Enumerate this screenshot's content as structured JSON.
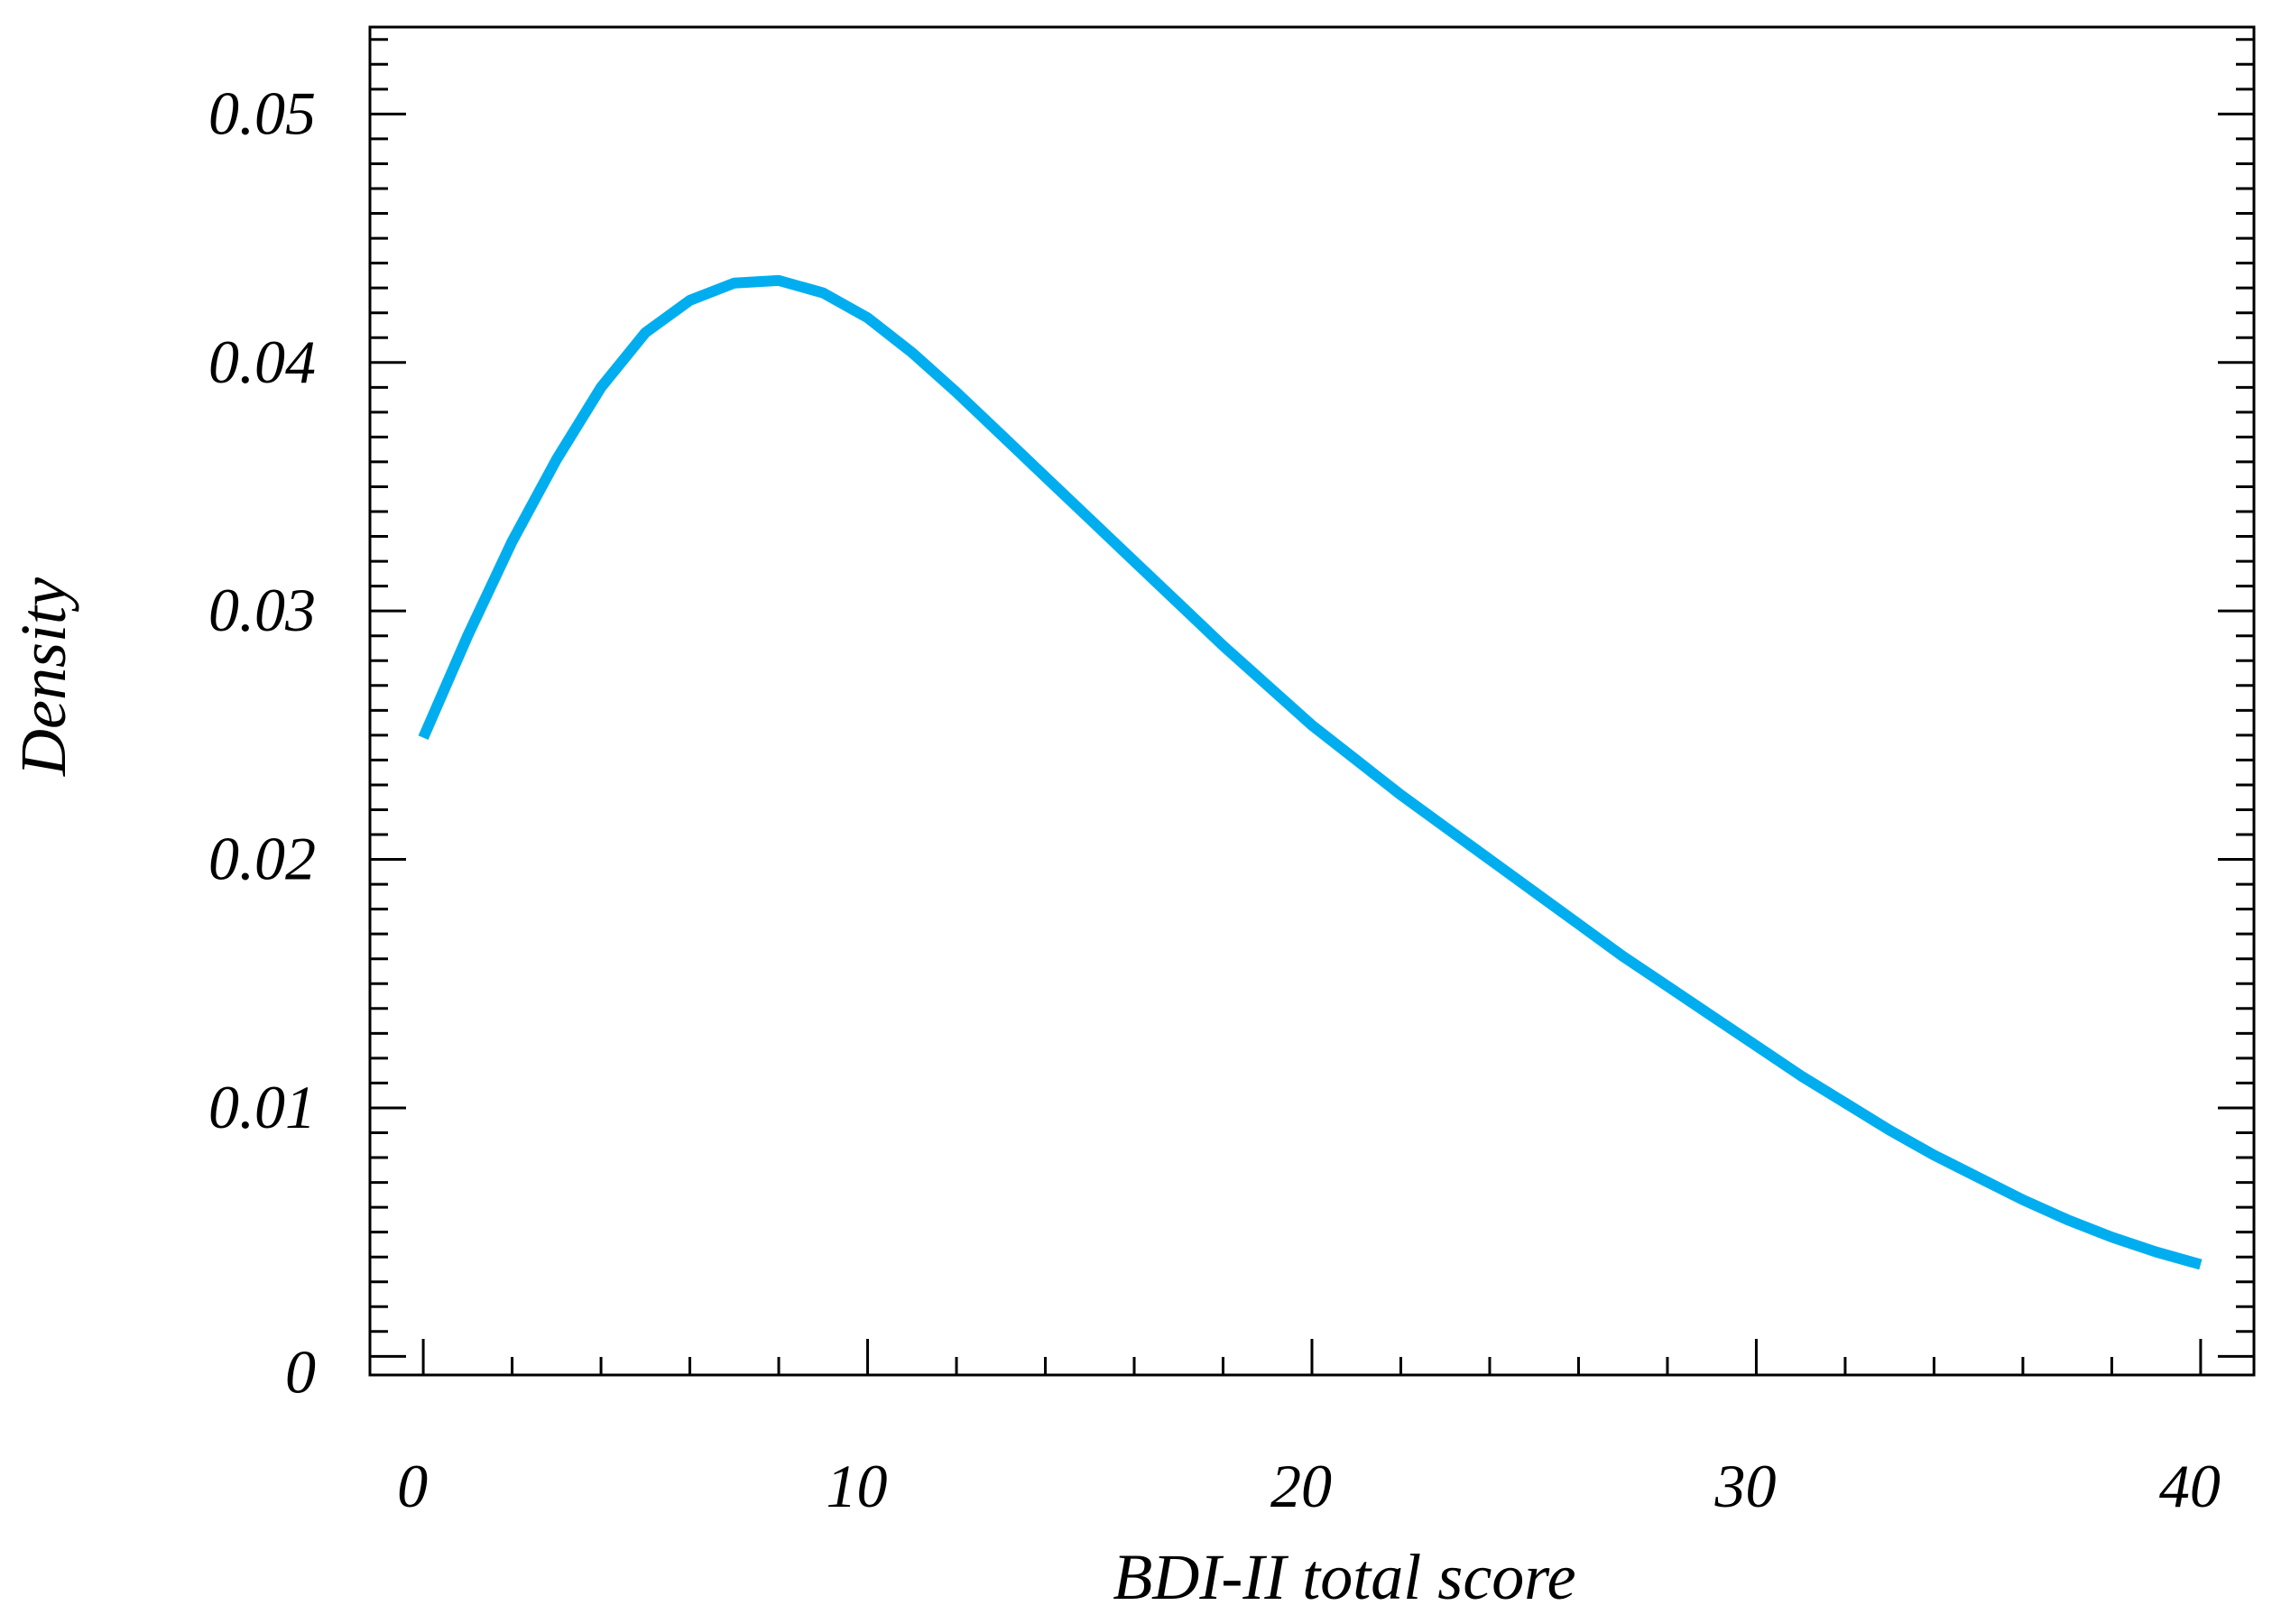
{
  "chart_data": {
    "type": "line",
    "xlabel": "BDI-II total score",
    "ylabel": "Density",
    "xlim": [
      -1.2,
      41.2
    ],
    "ylim": [
      -0.00075,
      0.0535
    ],
    "x_ticks": [
      0,
      10,
      20,
      30,
      40
    ],
    "x_tick_labels": [
      "0",
      "10",
      "20",
      "30",
      "40"
    ],
    "y_ticks": [
      0,
      0.01,
      0.02,
      0.03,
      0.04,
      0.05
    ],
    "y_tick_labels": [
      "0",
      "0.01",
      "0.02",
      "0.03",
      "0.04",
      "0.05"
    ],
    "y_minor_step": 0.001,
    "x_minor_step": 2,
    "grid": false,
    "series": [
      {
        "color": "#00aeef",
        "x": [
          0,
          1,
          2,
          3,
          4,
          5,
          6,
          7,
          8,
          9,
          10,
          11,
          12,
          13,
          14,
          15,
          16,
          17,
          18,
          19,
          20,
          21,
          22,
          23,
          24,
          25,
          26,
          27,
          28,
          29,
          30,
          31,
          32,
          33,
          34,
          35,
          36,
          37,
          38,
          39,
          40
        ],
        "values": [
          0.0249,
          0.029,
          0.0328,
          0.0361,
          0.039,
          0.0412,
          0.0425,
          0.0432,
          0.0433,
          0.0428,
          0.0418,
          0.0404,
          0.0388,
          0.0371,
          0.0354,
          0.0337,
          0.032,
          0.0303,
          0.0286,
          0.027,
          0.0254,
          0.024,
          0.0226,
          0.0213,
          0.02,
          0.0187,
          0.0174,
          0.0161,
          0.0149,
          0.0137,
          0.0125,
          0.0113,
          0.0102,
          0.0091,
          0.0081,
          0.0072,
          0.0063,
          0.0055,
          0.0048,
          0.0042,
          0.0037
        ]
      }
    ]
  }
}
